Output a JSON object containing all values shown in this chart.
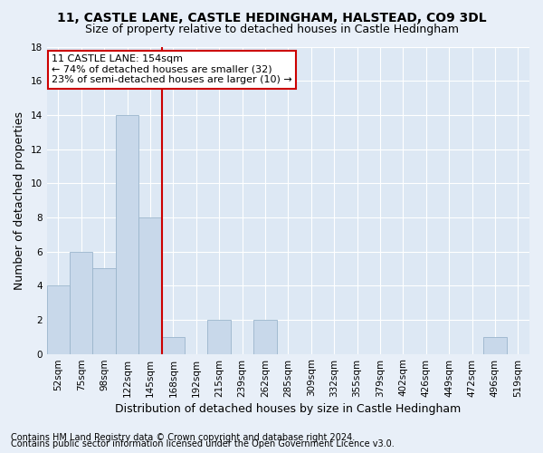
{
  "title1": "11, CASTLE LANE, CASTLE HEDINGHAM, HALSTEAD, CO9 3DL",
  "title2": "Size of property relative to detached houses in Castle Hedingham",
  "xlabel": "Distribution of detached houses by size in Castle Hedingham",
  "ylabel": "Number of detached properties",
  "footnote1": "Contains HM Land Registry data © Crown copyright and database right 2024.",
  "footnote2": "Contains public sector information licensed under the Open Government Licence v3.0.",
  "categories": [
    "52sqm",
    "75sqm",
    "98sqm",
    "122sqm",
    "145sqm",
    "168sqm",
    "192sqm",
    "215sqm",
    "239sqm",
    "262sqm",
    "285sqm",
    "309sqm",
    "332sqm",
    "355sqm",
    "379sqm",
    "402sqm",
    "426sqm",
    "449sqm",
    "472sqm",
    "496sqm",
    "519sqm"
  ],
  "values": [
    4,
    6,
    5,
    14,
    8,
    1,
    0,
    2,
    0,
    2,
    0,
    0,
    0,
    0,
    0,
    0,
    0,
    0,
    0,
    1,
    0
  ],
  "bar_color": "#c8d8ea",
  "bar_edge_color": "#9ab5cc",
  "subject_line_index": 4,
  "subject_line_color": "#cc0000",
  "annotation_line1": "11 CASTLE LANE: 154sqm",
  "annotation_line2": "← 74% of detached houses are smaller (32)",
  "annotation_line3": "23% of semi-detached houses are larger (10) →",
  "annotation_box_color": "#cc0000",
  "ylim": [
    0,
    18
  ],
  "yticks": [
    0,
    2,
    4,
    6,
    8,
    10,
    12,
    14,
    16,
    18
  ],
  "figure_bg": "#e8eff8",
  "axes_bg": "#dde8f4",
  "grid_color": "#ffffff",
  "title1_fontsize": 10,
  "title2_fontsize": 9,
  "xlabel_fontsize": 9,
  "ylabel_fontsize": 9,
  "tick_fontsize": 7.5,
  "annotation_fontsize": 8,
  "footnote_fontsize": 7
}
